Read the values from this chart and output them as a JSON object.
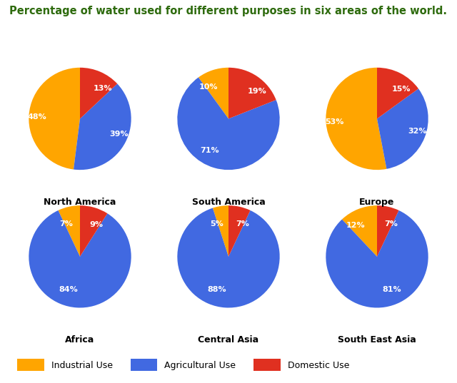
{
  "title": "Percentage of water used for different purposes in six areas of the world.",
  "title_color": "#2e6b0e",
  "title_fontsize": 10.5,
  "background_color": "#ffffff",
  "regions": [
    "North America",
    "South America",
    "Europe",
    "Africa",
    "Central Asia",
    "South East Asia"
  ],
  "data": [
    [
      48,
      39,
      13
    ],
    [
      10,
      71,
      19
    ],
    [
      53,
      32,
      15
    ],
    [
      7,
      84,
      9
    ],
    [
      5,
      88,
      7
    ],
    [
      12,
      81,
      7
    ]
  ],
  "labels": [
    [
      "48%",
      "39%",
      "13%"
    ],
    [
      "10%",
      "71%",
      "19%"
    ],
    [
      "53%",
      "32%",
      "15%"
    ],
    [
      "7%",
      "84%",
      "9%"
    ],
    [
      "5%",
      "88%",
      "7%"
    ],
    [
      "12%",
      "81%",
      "7%"
    ]
  ],
  "colors": [
    "#FFA500",
    "#4169E1",
    "#E03020"
  ],
  "legend_labels": [
    "Industrial Use",
    "Agricultural Use",
    "Domestic Use"
  ],
  "label_fontsize": 8,
  "label_color": "#ffffff",
  "region_fontsize": 9,
  "region_fontweight": "bold"
}
